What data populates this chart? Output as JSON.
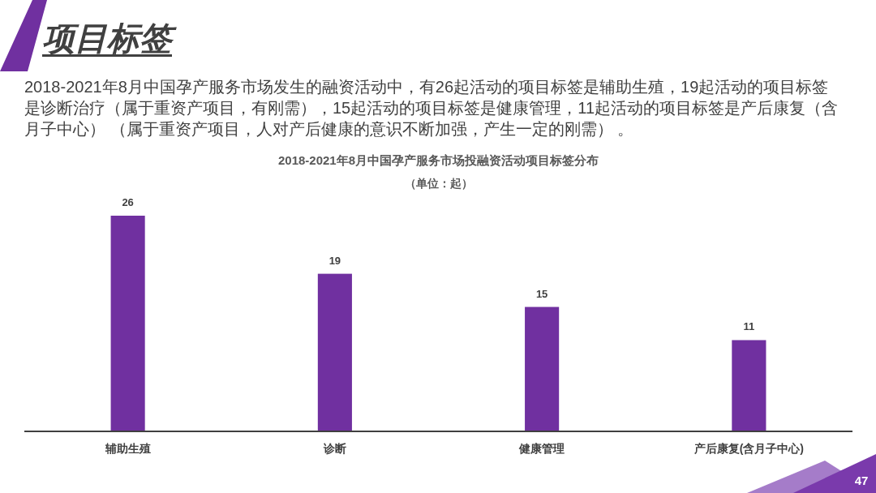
{
  "chart_data": {
    "type": "bar",
    "title": "2018-2021年8月中国孕产服务市场投融资活动项目标签分布",
    "subtitle": "（单位：起）",
    "categories": [
      "辅助生殖",
      "诊断",
      "健康管理",
      "产后康复(含月子中心)"
    ],
    "values": [
      26,
      19,
      15,
      11
    ],
    "color": "#7030a0",
    "data_labels": true,
    "annotations": [
      "项目标签",
      "2018-2021年8月中国孕产服务市场发生的融资活动中，有26起活动的项目标签是辅助生殖，19起活动的项目标签是诊断治疗（属于重资产项目，有刚需），15起活动的项目标签是健康管理，11起活动的项目标签是产后康复（含月子中心） （属于重资产项目，人对产后健康的意识不断加强，产生一定的刚需） 。",
      "47"
    ]
  }
}
